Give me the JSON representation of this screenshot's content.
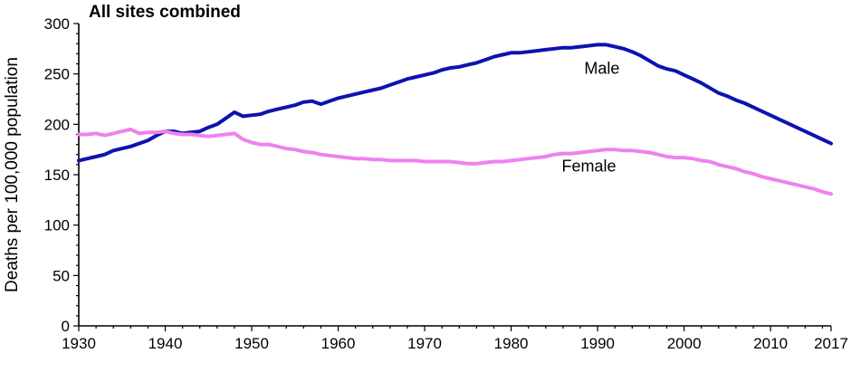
{
  "chart_data": {
    "type": "line",
    "title": "All sites combined",
    "xlabel": "",
    "ylabel": "Deaths per 100,000 population",
    "xlim": [
      1930,
      2017
    ],
    "ylim": [
      0,
      300
    ],
    "grid": false,
    "x_ticks": [
      1930,
      1940,
      1950,
      1960,
      1970,
      1980,
      1990,
      2000,
      2010,
      2017
    ],
    "x_tick_labels": [
      "1930",
      "1940",
      "1950",
      "1960",
      "1970",
      "1980",
      "1990",
      "2000",
      "2010",
      "2017"
    ],
    "y_ticks": [
      0,
      50,
      100,
      150,
      200,
      250,
      300
    ],
    "y_tick_labels": [
      "0",
      "50",
      "100",
      "150",
      "200",
      "250",
      "300"
    ],
    "series": [
      {
        "name": "Male",
        "label": "Male",
        "label_anchor": [
          1990.5,
          250
        ],
        "color": "#0d13b0",
        "x": [
          1930,
          1931,
          1932,
          1933,
          1934,
          1935,
          1936,
          1937,
          1938,
          1939,
          1940,
          1941,
          1942,
          1943,
          1944,
          1945,
          1946,
          1947,
          1948,
          1949,
          1950,
          1951,
          1952,
          1953,
          1954,
          1955,
          1956,
          1957,
          1958,
          1959,
          1960,
          1961,
          1962,
          1963,
          1964,
          1965,
          1966,
          1967,
          1968,
          1969,
          1970,
          1971,
          1972,
          1973,
          1974,
          1975,
          1976,
          1977,
          1978,
          1979,
          1980,
          1981,
          1982,
          1983,
          1984,
          1985,
          1986,
          1987,
          1988,
          1989,
          1990,
          1991,
          1992,
          1993,
          1994,
          1995,
          1996,
          1997,
          1998,
          1999,
          2000,
          2001,
          2002,
          2003,
          2004,
          2005,
          2006,
          2007,
          2008,
          2009,
          2010,
          2011,
          2012,
          2013,
          2014,
          2015,
          2016,
          2017
        ],
        "values": [
          164,
          166,
          168,
          170,
          174,
          176,
          178,
          181,
          184,
          189,
          193,
          193,
          191,
          192,
          193,
          197,
          200,
          206,
          212,
          208,
          209,
          210,
          213,
          215,
          217,
          219,
          222,
          223,
          220,
          223,
          226,
          228,
          230,
          232,
          234,
          236,
          239,
          242,
          245,
          247,
          249,
          251,
          254,
          256,
          257,
          259,
          261,
          264,
          267,
          269,
          271,
          271,
          272,
          273,
          274,
          275,
          276,
          276,
          277,
          278,
          279,
          279,
          277,
          275,
          272,
          268,
          263,
          258,
          255,
          253,
          249,
          245,
          241,
          236,
          231,
          228,
          224,
          221,
          217,
          213,
          209,
          205,
          201,
          197,
          193,
          189,
          185,
          181
        ]
      },
      {
        "name": "Female",
        "label": "Female",
        "label_anchor": [
          1989,
          153
        ],
        "color": "#ef81ef",
        "x": [
          1930,
          1931,
          1932,
          1933,
          1934,
          1935,
          1936,
          1937,
          1938,
          1939,
          1940,
          1941,
          1942,
          1943,
          1944,
          1945,
          1946,
          1947,
          1948,
          1949,
          1950,
          1951,
          1952,
          1953,
          1954,
          1955,
          1956,
          1957,
          1958,
          1959,
          1960,
          1961,
          1962,
          1963,
          1964,
          1965,
          1966,
          1967,
          1968,
          1969,
          1970,
          1971,
          1972,
          1973,
          1974,
          1975,
          1976,
          1977,
          1978,
          1979,
          1980,
          1981,
          1982,
          1983,
          1984,
          1985,
          1986,
          1987,
          1988,
          1989,
          1990,
          1991,
          1992,
          1993,
          1994,
          1995,
          1996,
          1997,
          1998,
          1999,
          2000,
          2001,
          2002,
          2003,
          2004,
          2005,
          2006,
          2007,
          2008,
          2009,
          2010,
          2011,
          2012,
          2013,
          2014,
          2015,
          2016,
          2017
        ],
        "values": [
          190,
          190,
          191,
          189,
          191,
          193,
          195,
          191,
          192,
          192,
          193,
          191,
          190,
          190,
          189,
          188,
          189,
          190,
          191,
          185,
          182,
          180,
          180,
          178,
          176,
          175,
          173,
          172,
          170,
          169,
          168,
          167,
          166,
          166,
          165,
          165,
          164,
          164,
          164,
          164,
          163,
          163,
          163,
          163,
          162,
          161,
          161,
          162,
          163,
          163,
          164,
          165,
          166,
          167,
          168,
          170,
          171,
          171,
          172,
          173,
          174,
          175,
          175,
          174,
          174,
          173,
          172,
          170,
          168,
          167,
          167,
          166,
          164,
          163,
          160,
          158,
          156,
          153,
          151,
          148,
          146,
          144,
          142,
          140,
          138,
          136,
          133,
          131
        ]
      }
    ]
  }
}
